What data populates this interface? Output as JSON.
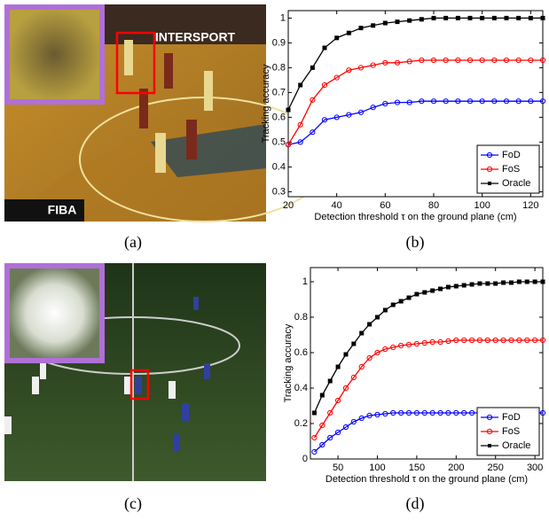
{
  "photos": [
    {
      "texts": [
        "INTERSPORT",
        "FIBA"
      ]
    },
    {
      "texts": []
    }
  ],
  "captions": [
    "(a)",
    "(b)",
    "(c)",
    "(d)"
  ],
  "chart_data": [
    {
      "type": "line",
      "xlabel": "Detection threshold τ on the ground plane (cm)",
      "ylabel": "Tracking accuracy",
      "x": [
        20,
        25,
        30,
        35,
        40,
        45,
        50,
        55,
        60,
        65,
        70,
        75,
        80,
        85,
        90,
        95,
        100,
        105,
        110,
        115,
        120,
        125
      ],
      "xlim": [
        20,
        125
      ],
      "xticks": [
        20,
        40,
        60,
        80,
        100,
        120
      ],
      "ylim": [
        0.28,
        1.03
      ],
      "yticks": [
        0.3,
        0.4,
        0.5,
        0.6,
        0.7,
        0.8,
        0.9,
        1
      ],
      "legend": "lower right",
      "series": [
        {
          "name": "FoD",
          "color": "#0000ff",
          "marker": "circle",
          "values": [
            0.49,
            0.5,
            0.54,
            0.59,
            0.6,
            0.61,
            0.62,
            0.64,
            0.655,
            0.66,
            0.66,
            0.665,
            0.665,
            0.665,
            0.665,
            0.665,
            0.665,
            0.665,
            0.665,
            0.665,
            0.665,
            0.665
          ]
        },
        {
          "name": "FoS",
          "color": "#ff0000",
          "marker": "circle",
          "values": [
            0.49,
            0.57,
            0.67,
            0.73,
            0.76,
            0.79,
            0.8,
            0.81,
            0.82,
            0.82,
            0.825,
            0.83,
            0.83,
            0.83,
            0.83,
            0.83,
            0.83,
            0.83,
            0.83,
            0.83,
            0.83,
            0.83
          ]
        },
        {
          "name": "Oracle",
          "color": "#000000",
          "marker": "square",
          "values": [
            0.63,
            0.73,
            0.8,
            0.88,
            0.92,
            0.94,
            0.96,
            0.97,
            0.98,
            0.985,
            0.99,
            0.995,
            1.0,
            1.0,
            1.0,
            1.0,
            1.0,
            1.0,
            1.0,
            1.0,
            1.0,
            1.0
          ]
        }
      ]
    },
    {
      "type": "line",
      "xlabel": "Detection threshold τ on the ground plane (cm)",
      "ylabel": "Tracking accuracy",
      "x": [
        20,
        30,
        40,
        50,
        60,
        70,
        80,
        90,
        100,
        110,
        120,
        130,
        140,
        150,
        160,
        170,
        180,
        190,
        200,
        210,
        220,
        230,
        240,
        250,
        260,
        270,
        280,
        290,
        300,
        310
      ],
      "xlim": [
        15,
        310
      ],
      "xticks": [
        50,
        100,
        150,
        200,
        250,
        300
      ],
      "ylim": [
        0,
        1.08
      ],
      "yticks": [
        0,
        0.2,
        0.4,
        0.6,
        0.8,
        1
      ],
      "legend": "lower right",
      "series": [
        {
          "name": "FoD",
          "color": "#0000ff",
          "marker": "circle",
          "values": [
            0.04,
            0.08,
            0.12,
            0.15,
            0.18,
            0.21,
            0.23,
            0.245,
            0.25,
            0.255,
            0.26,
            0.26,
            0.26,
            0.26,
            0.26,
            0.26,
            0.26,
            0.26,
            0.26,
            0.26,
            0.26,
            0.26,
            0.26,
            0.26,
            0.26,
            0.26,
            0.26,
            0.26,
            0.26,
            0.26
          ]
        },
        {
          "name": "FoS",
          "color": "#ff0000",
          "marker": "circle",
          "values": [
            0.12,
            0.19,
            0.26,
            0.33,
            0.4,
            0.46,
            0.52,
            0.57,
            0.6,
            0.62,
            0.63,
            0.64,
            0.645,
            0.65,
            0.655,
            0.66,
            0.66,
            0.665,
            0.67,
            0.67,
            0.67,
            0.67,
            0.67,
            0.67,
            0.67,
            0.67,
            0.67,
            0.67,
            0.67,
            0.67
          ]
        },
        {
          "name": "Oracle",
          "color": "#000000",
          "marker": "square",
          "values": [
            0.26,
            0.36,
            0.44,
            0.52,
            0.59,
            0.65,
            0.71,
            0.76,
            0.8,
            0.84,
            0.87,
            0.89,
            0.91,
            0.93,
            0.94,
            0.95,
            0.96,
            0.97,
            0.975,
            0.98,
            0.985,
            0.99,
            0.99,
            0.99,
            0.995,
            0.995,
            1.0,
            1.0,
            1.0,
            1.0
          ]
        }
      ]
    }
  ]
}
